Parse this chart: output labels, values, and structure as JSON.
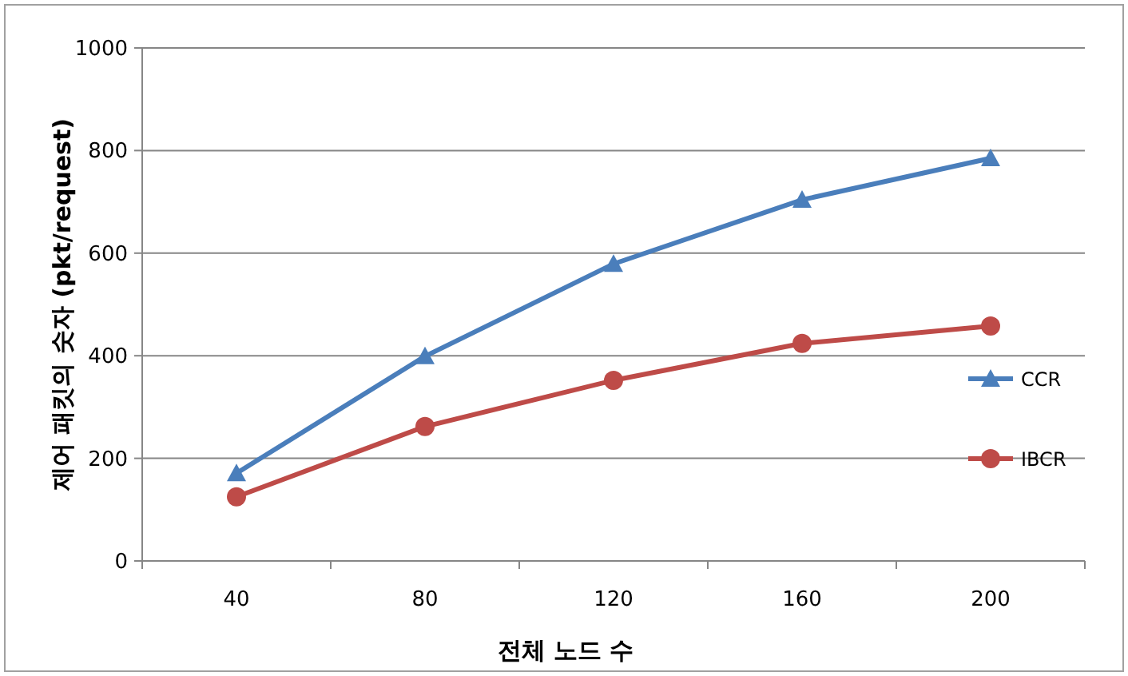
{
  "chart_data": {
    "type": "line",
    "xlabel": "전체 노드 수",
    "ylabel": "제어 패킷의 숫자 (pkt/request)",
    "categories": [
      "40",
      "80",
      "120",
      "160",
      "200"
    ],
    "series": [
      {
        "name": "CCR",
        "color": "#4a7ebb",
        "marker": "triangle",
        "values": [
          171,
          399,
          579,
          704,
          785
        ]
      },
      {
        "name": "IBCR",
        "color": "#be4b48",
        "marker": "circle",
        "values": [
          125,
          262,
          352,
          424,
          458
        ]
      }
    ],
    "ylim": [
      0,
      1000
    ],
    "yticks": [
      0,
      200,
      400,
      600,
      800,
      1000
    ],
    "grid": "y",
    "legend": "right"
  }
}
